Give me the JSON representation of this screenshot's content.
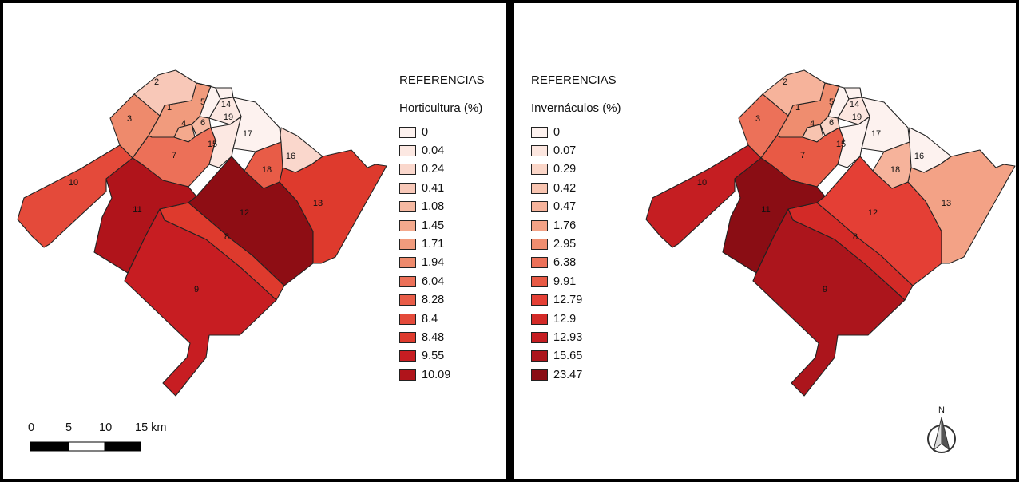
{
  "left_panel": {
    "title": "REFERENCIAS",
    "subtitle": "Horticultura (%)",
    "legend": [
      {
        "label": "0",
        "color": "#fdf2ef"
      },
      {
        "label": "0.04",
        "color": "#fce8e2"
      },
      {
        "label": "0.24",
        "color": "#fad7cc"
      },
      {
        "label": "0.41",
        "color": "#f8c8b8"
      },
      {
        "label": "1.08",
        "color": "#f6b9a2"
      },
      {
        "label": "1.45",
        "color": "#f4a98d"
      },
      {
        "label": "1.71",
        "color": "#f19b7d"
      },
      {
        "label": "1.94",
        "color": "#ee8a6c"
      },
      {
        "label": "6.04",
        "color": "#ec7058"
      },
      {
        "label": "8.28",
        "color": "#e85c47"
      },
      {
        "label": "8.4",
        "color": "#e44a3a"
      },
      {
        "label": "8.48",
        "color": "#de3a2d"
      },
      {
        "label": "9.55",
        "color": "#c71d22"
      },
      {
        "label": "10.09",
        "color": "#b0141b"
      }
    ],
    "scale": {
      "labels": [
        "0",
        "5",
        "10",
        "15 km"
      ]
    }
  },
  "right_panel": {
    "title": "REFERENCIAS",
    "subtitle": "Invernáculos (%)",
    "legend": [
      {
        "label": "0",
        "color": "#fdf2ef"
      },
      {
        "label": "0.07",
        "color": "#fce6df"
      },
      {
        "label": "0.29",
        "color": "#fad5c7"
      },
      {
        "label": "0.42",
        "color": "#f8c4b0"
      },
      {
        "label": "0.47",
        "color": "#f6b39b"
      },
      {
        "label": "1.76",
        "color": "#f3a286"
      },
      {
        "label": "2.95",
        "color": "#ef8d6f"
      },
      {
        "label": "6.38",
        "color": "#ec7159"
      },
      {
        "label": "9.91",
        "color": "#e85a45"
      },
      {
        "label": "12.79",
        "color": "#e43f35"
      },
      {
        "label": "12.9",
        "color": "#d32a27"
      },
      {
        "label": "12.93",
        "color": "#c51e22"
      },
      {
        "label": "15.65",
        "color": "#ac151c"
      },
      {
        "label": "23.47",
        "color": "#8a0d14"
      }
    ],
    "north_label": "N"
  },
  "districts": [
    "1",
    "2",
    "3",
    "4",
    "5",
    "6",
    "7",
    "8",
    "9",
    "10",
    "11",
    "12",
    "13",
    "14",
    "15",
    "16",
    "17",
    "18",
    "19"
  ],
  "map_left_fills": {
    "1": "#f19b7d",
    "2": "#f8c8b8",
    "3": "#ee8a6c",
    "4": "#f4a98d",
    "5": "#fdf2ef",
    "6": "#f6b9a2",
    "7": "#ec7058",
    "8": "#de3a2d",
    "9": "#c71d22",
    "10": "#e44a3a",
    "11": "#b0141b",
    "12": "#8e0d14",
    "13": "#de3a2d",
    "14": "#fdf2ef",
    "15": "#fce8e2",
    "16": "#fad7cc",
    "17": "#fdf2ef",
    "18": "#e85c47",
    "19": "#fce8e2"
  },
  "map_right_fills": {
    "1": "#ef8d6f",
    "2": "#f6b39b",
    "3": "#ec7159",
    "4": "#f8c4b0",
    "5": "#fdf2ef",
    "6": "#fad5c7",
    "7": "#e85a45",
    "8": "#d32a27",
    "9": "#ac151c",
    "10": "#c51e22",
    "11": "#8a0d14",
    "12": "#e43f35",
    "13": "#f3a286",
    "14": "#fdf2ef",
    "15": "#fdf2ef",
    "16": "#fdf2ef",
    "17": "#fdf2ef",
    "18": "#f6b39b",
    "19": "#fce6df"
  }
}
